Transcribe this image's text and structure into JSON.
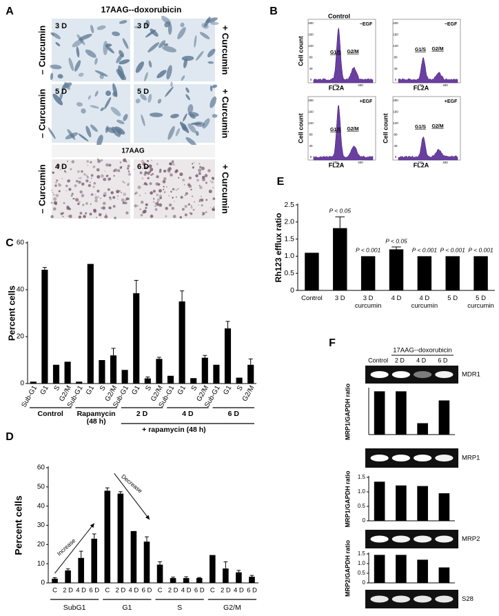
{
  "panel_a": {
    "label": "A",
    "title": "17AAG--doxorubicin",
    "divider": "17AAG",
    "left_labels": [
      "– Curcumin",
      "– Curcumin",
      "– Curcumin"
    ],
    "right_labels": [
      "+ Curcumin",
      "+ Curcumin",
      "+ Curcumin"
    ],
    "image_labels": [
      "3 D",
      "3 D",
      "5 D",
      "5 D",
      "4 D",
      "6 D"
    ]
  },
  "panel_b": {
    "label": "B",
    "x_label": "FL2A",
    "peak_labels": [
      "G1/S",
      "G2/M"
    ],
    "yticks": [
      "0",
      "40",
      "80",
      "120",
      "160",
      "200"
    ],
    "xticks": [
      "200",
      "400"
    ],
    "plots": [
      {
        "title": "Control",
        "condition": "−EGF",
        "y_label": "Cell count"
      },
      {
        "condition": "−EGF"
      },
      {
        "condition": "+EGF",
        "y_label": "Cell count"
      },
      {
        "condition": "+EGF",
        "y_label": "Cell count"
      }
    ]
  },
  "panel_f": {
    "label": "F",
    "title": "17AAG--doxorubicin",
    "columns": [
      "Control",
      "2 D",
      "4 D",
      "6 D"
    ],
    "gels": [
      "MDR1",
      "MRP1",
      "MRP2",
      "S28"
    ]
  },
  "chart_data": [
    {
      "type": "bar",
      "panel": "C",
      "y_label": "Percent cells",
      "categories": [
        "Sub-G1",
        "G1",
        "S",
        "G2/M",
        "Sub-G1",
        "G1",
        "S",
        "G2/M",
        "Sub-G1",
        "G1",
        "S",
        "G2/M",
        "Sub-G1",
        "G1",
        "S",
        "G2/M",
        "Sub-G1",
        "G1",
        "S",
        "G2/M"
      ],
      "values": [
        0.8,
        48.5,
        8,
        9.3,
        0.8,
        51,
        10,
        12,
        5.8,
        38.5,
        2.2,
        10.5,
        3.3,
        35,
        2.3,
        11,
        8,
        23.5,
        2.5,
        8
      ],
      "errors": [
        null,
        1,
        null,
        null,
        null,
        null,
        null,
        3,
        null,
        5.5,
        0.6,
        0.7,
        null,
        4.5,
        null,
        1,
        null,
        3,
        null,
        2.5
      ],
      "groups": [
        "Control",
        "Rapamycin (48 h)",
        "2 D",
        "4 D",
        "6 D"
      ],
      "group_note": "+ rapamycin (48 h)",
      "color": "#000000",
      "ylim": [
        0,
        60
      ],
      "yticks": [
        0,
        20,
        40,
        60
      ]
    },
    {
      "type": "bar",
      "panel": "D",
      "y_label": "Percent cells",
      "categories": [
        "C",
        "2 D",
        "4 D",
        "6 D",
        "C",
        "2 D",
        "4 D",
        "6 D",
        "C",
        "2 D",
        "4 D",
        "6 D",
        "C",
        "2 D",
        "4 D",
        "6 D"
      ],
      "values": [
        2.2,
        6.5,
        13,
        23,
        48,
        46.5,
        27,
        21.5,
        9.5,
        2.5,
        2.5,
        2.5,
        14.5,
        7.5,
        5.5,
        3.2
      ],
      "errors": [
        0.5,
        0.8,
        3.5,
        2.5,
        1.5,
        1,
        null,
        2.5,
        1.5,
        0.5,
        0.7,
        0.3,
        null,
        3.5,
        1,
        0.7
      ],
      "groups": [
        "SubG1",
        "G1",
        "S",
        "G2/M"
      ],
      "annotations": [
        "Increase",
        "Decrease"
      ],
      "color": "#000000",
      "ylim": [
        0,
        60
      ],
      "yticks": [
        0,
        10,
        20,
        30,
        40,
        50,
        60
      ]
    },
    {
      "type": "bar",
      "panel": "E",
      "y_label": "Rh123 efflux ratio",
      "categories": [
        "Control",
        "3 D",
        "3 D curcumin",
        "4 D",
        "4 D curcumin",
        "5 D",
        "5 D curcumin"
      ],
      "values": [
        1.1,
        1.82,
        1.0,
        1.2,
        1.0,
        1.0,
        1.0
      ],
      "errors": [
        null,
        0.33,
        null,
        0.07,
        null,
        null,
        null
      ],
      "value_annotations": [
        null,
        "P < 0.05",
        "P < 0.001",
        "P < 0.05",
        "P < 0.001",
        "P < 0.001",
        "P < 0.001"
      ],
      "color": "#000000",
      "ylim": [
        0,
        2.5
      ],
      "yticks": [
        0,
        0.5,
        {
          "value": 1,
          "label": "1.0"
        },
        1.5,
        {
          "value": 2,
          "label": "2.0"
        },
        2.5
      ]
    },
    {
      "type": "bar",
      "y_label": "MRP1/GAPDH ratio",
      "values": [
        1.52,
        1.52,
        0.4,
        1.2
      ],
      "color": "#000000",
      "ylim": [
        0,
        1.6
      ]
    },
    {
      "type": "bar",
      "y_label": "MRP1/GAPDH ratio",
      "values": [
        1.35,
        1.22,
        1.2,
        0.95
      ],
      "color": "#000000",
      "ylim": [
        0,
        1.5
      ],
      "yticks": [
        0,
        0.5,
        {
          "value": 1,
          "label": "1.0"
        },
        1.5
      ]
    },
    {
      "type": "bar",
      "y_label": "MRP2/GAPDH ratio",
      "values": [
        1.45,
        1.45,
        1.2,
        0.8
      ],
      "color": "#000000",
      "ylim": [
        0,
        1.5
      ],
      "yticks": [
        0,
        0.5,
        {
          "value": 1,
          "label": "1.0"
        },
        1.5
      ]
    }
  ]
}
